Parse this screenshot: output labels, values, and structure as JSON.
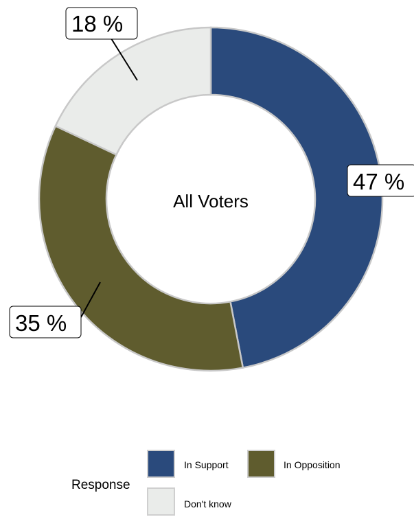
{
  "chart_data": {
    "type": "pie",
    "variant": "donut",
    "center_label": "All Voters",
    "categories": [
      "In Support",
      "In Opposition",
      "Don't know"
    ],
    "values": [
      47,
      35,
      18
    ],
    "value_labels": [
      "47 %",
      "35 %",
      "18 %"
    ],
    "colors": [
      "#2a4a7c",
      "#5f5c2e",
      "#eaecea"
    ],
    "legend": {
      "title": "Response",
      "placement": "bottom",
      "items": [
        {
          "label": "In Support",
          "color": "#2a4a7c"
        },
        {
          "label": "In Opposition",
          "color": "#5f5c2e"
        },
        {
          "label": "Don't know",
          "color": "#eaecea"
        }
      ]
    }
  }
}
